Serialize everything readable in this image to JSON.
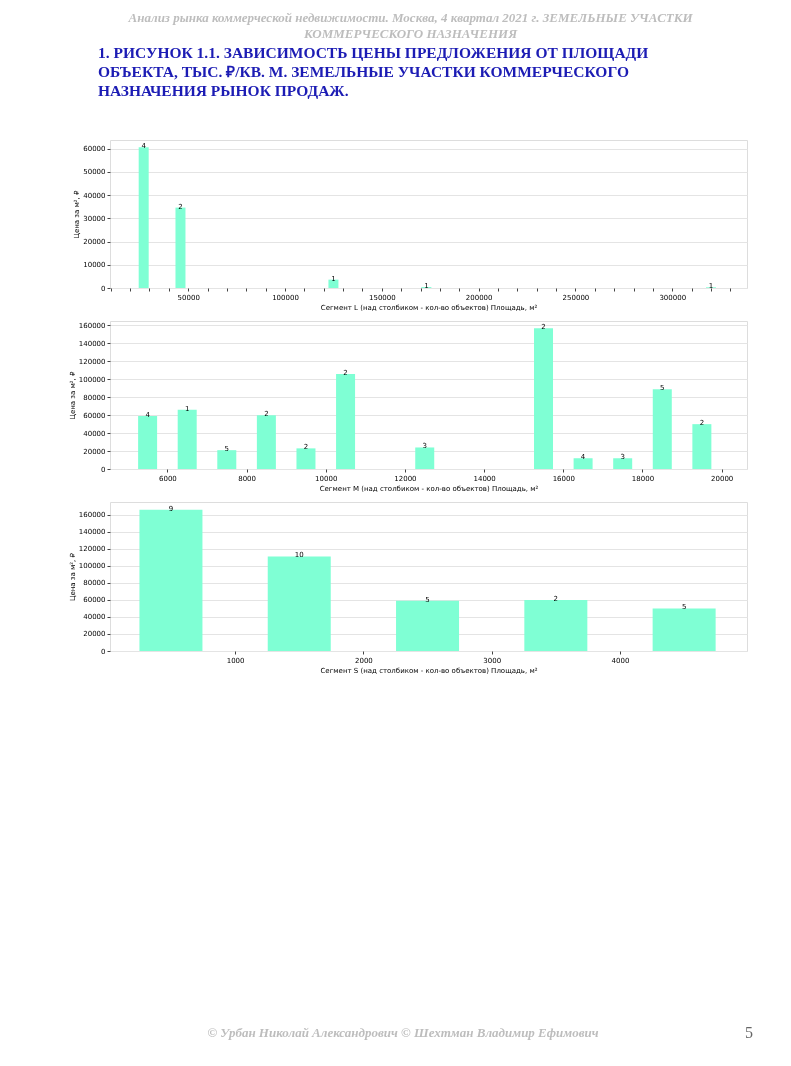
{
  "chart_data": [
    {
      "type": "bar",
      "title": "1. РИСУНОК 1.1. ЗАВИСИМОСТЬ ЦЕНЫ ПРЕДЛОЖЕНИЯ ОТ ПЛОЩАДИ ОБЪЕКТА, ТЫС. ₽/КВ. М. ЗЕМЕЛЬНЫЕ УЧАСТКИ КОММЕРЧЕСКОГО НАЗНАЧЕНИЯ РЫНОК ПРОДАЖ.",
      "annotations": [
        "Анализ рынка коммерческой недвижимости.   Москва, 4 квартал 2021 г.   ЗЕМЕЛЬНЫЕ УЧАСТКИ КОММЕРЧЕСКОГО НАЗНАЧЕНИЯ",
        {
          "text": "4",
          "x": 27000,
          "y": 60600
        },
        {
          "text": "2",
          "x": 46000,
          "y": 34600
        },
        {
          "text": "1",
          "x": 125000,
          "y": 3600
        },
        {
          "text": "1",
          "x": 173000,
          "y": 400
        },
        {
          "text": "1",
          "x": 320000,
          "y": 300
        }
      ],
      "xlabel": "Сегмент L (над столбиком - кол-во объектов)   Площадь, м²",
      "ylabel": "Цена за м², ₽",
      "x": [
        27000,
        46000,
        125000,
        173000,
        320000
      ],
      "values": [
        60600,
        34600,
        3600,
        400,
        300
      ],
      "color": "#7fffd4",
      "xlim": [
        9600,
        338600
      ],
      "xticks": [
        {
          "value": 10000,
          "label": null
        },
        {
          "value": 20000,
          "label": null
        },
        {
          "value": 30000,
          "label": null
        },
        {
          "value": 40000,
          "label": null
        },
        50000,
        {
          "value": 60000,
          "label": null
        },
        {
          "value": 70000,
          "label": null
        },
        {
          "value": 80000,
          "label": null
        },
        {
          "value": 90000,
          "label": null
        },
        100000,
        {
          "value": 110000,
          "label": null
        },
        {
          "value": 120000,
          "label": null
        },
        {
          "value": 130000,
          "label": null
        },
        {
          "value": 140000,
          "label": null
        },
        150000,
        {
          "value": 160000,
          "label": null
        },
        {
          "value": 170000,
          "label": null
        },
        {
          "value": 180000,
          "label": null
        },
        {
          "value": 190000,
          "label": null
        },
        200000,
        {
          "value": 210000,
          "label": null
        },
        {
          "value": 220000,
          "label": null
        },
        {
          "value": 230000,
          "label": null
        },
        {
          "value": 240000,
          "label": null
        },
        250000,
        {
          "value": 260000,
          "label": null
        },
        {
          "value": 270000,
          "label": null
        },
        {
          "value": 280000,
          "label": null
        },
        {
          "value": 290000,
          "label": null
        },
        300000,
        {
          "value": 310000,
          "label": null
        },
        {
          "value": 320000,
          "label": null
        },
        {
          "value": 330000,
          "label": null
        }
      ],
      "ylim": [
        0,
        63700
      ],
      "yticks": [
        0,
        10000,
        20000,
        30000,
        40000,
        50000,
        60000
      ],
      "grid": "y"
    },
    {
      "type": "bar",
      "annotations": [
        {
          "text": "4",
          "x": 5500,
          "y": 59000
        },
        {
          "text": "1",
          "x": 6500,
          "y": 66000
        },
        {
          "text": "5",
          "x": 7500,
          "y": 21000
        },
        {
          "text": "2",
          "x": 8500,
          "y": 60000
        },
        {
          "text": "2",
          "x": 9500,
          "y": 23000
        },
        {
          "text": "2",
          "x": 10500,
          "y": 106000
        },
        {
          "text": "3",
          "x": 12500,
          "y": 24000
        },
        {
          "text": "2",
          "x": 15500,
          "y": 157000
        },
        {
          "text": "4",
          "x": 16500,
          "y": 12000
        },
        {
          "text": "3",
          "x": 17500,
          "y": 12000
        },
        {
          "text": "5",
          "x": 18500,
          "y": 89000
        },
        {
          "text": "2",
          "x": 19500,
          "y": 50000
        }
      ],
      "xlabel": "Сегмент M (над столбиком - кол-во объектов)   Площадь, м²",
      "ylabel": "Цена за м², ₽",
      "x": [
        5500,
        6500,
        7500,
        8500,
        9500,
        10500,
        12500,
        15500,
        16500,
        17500,
        18500,
        19500
      ],
      "values": [
        59000,
        66000,
        21000,
        60000,
        23000,
        106000,
        24000,
        157000,
        12000,
        12000,
        89000,
        50000
      ],
      "color": "#7fffd4",
      "xlim": [
        4550,
        20640
      ],
      "xticks": [
        6000,
        8000,
        10000,
        12000,
        14000,
        16000,
        18000,
        20000
      ],
      "ylim": [
        0,
        165000
      ],
      "yticks": [
        0,
        20000,
        40000,
        60000,
        80000,
        100000,
        120000,
        140000,
        160000
      ],
      "grid": "y"
    },
    {
      "type": "bar",
      "annotations": [
        "© Урбан Николай Александрович   © Шехтман Владимир Ефимович",
        "5",
        {
          "text": "9",
          "x": 500,
          "y": 166000
        },
        {
          "text": "10",
          "x": 1500,
          "y": 111000
        },
        {
          "text": "5",
          "x": 2500,
          "y": 59000
        },
        {
          "text": "2",
          "x": 3500,
          "y": 60000
        },
        {
          "text": "5",
          "x": 4500,
          "y": 50000
        }
      ],
      "xlabel": "Сегмент S (над столбиком - кол-во объектов)   Площадь, м²",
      "ylabel": "Цена за м², ₽",
      "x": [
        500,
        1500,
        2500,
        3500,
        4500
      ],
      "values": [
        166000,
        111000,
        59000,
        60000,
        50000
      ],
      "color": "#7fffd4",
      "xlim": [
        25,
        4990
      ],
      "xticks": [
        1000,
        2000,
        3000,
        4000
      ],
      "ylim": [
        0,
        175000
      ],
      "yticks": [
        0,
        20000,
        40000,
        60000,
        80000,
        100000,
        120000,
        140000,
        160000
      ],
      "grid": "y"
    }
  ]
}
